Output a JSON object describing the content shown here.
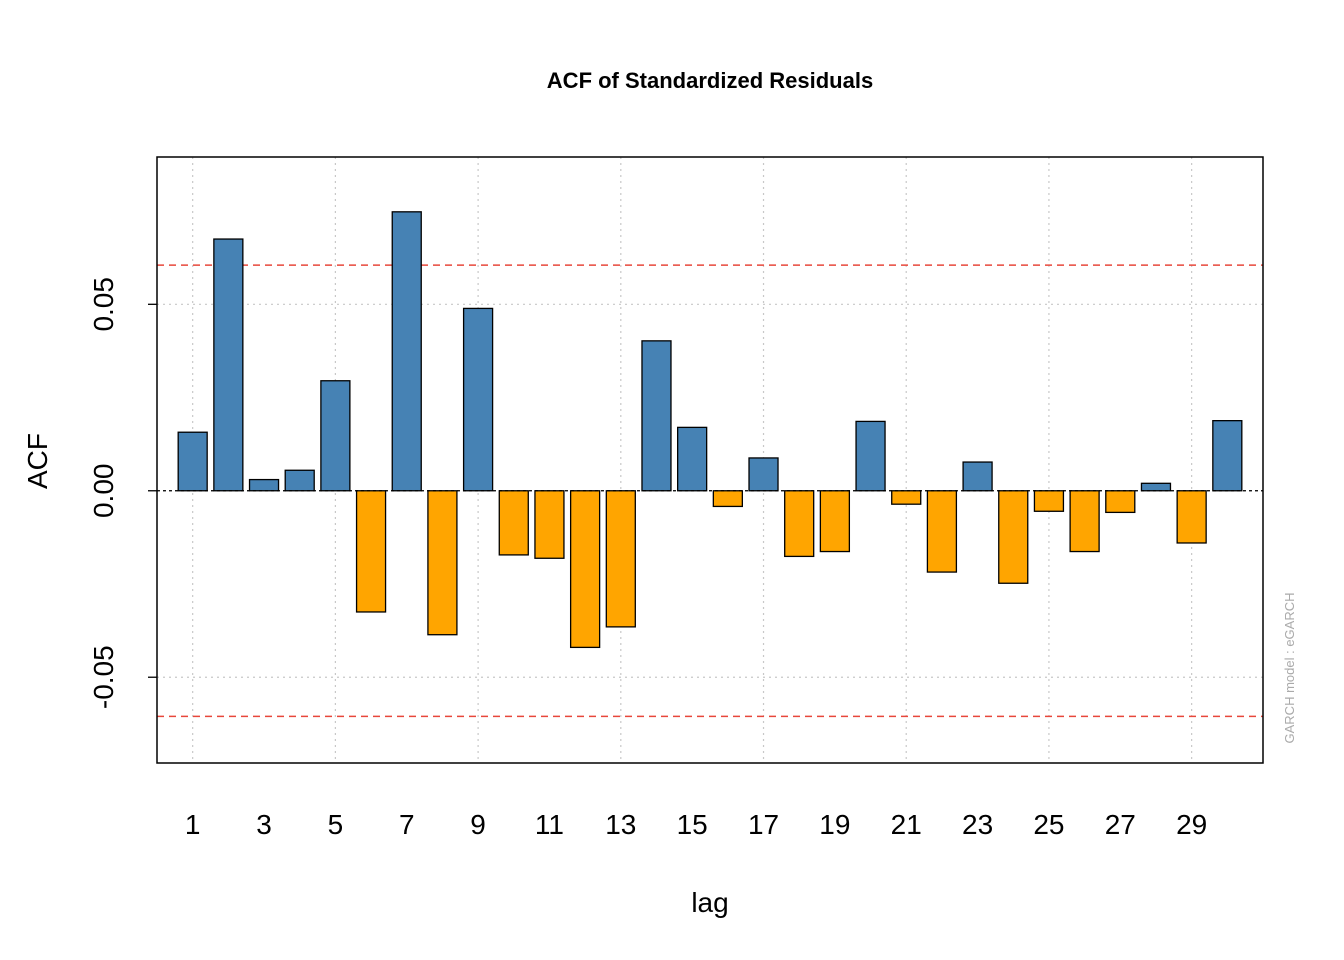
{
  "chart_data": {
    "type": "bar",
    "title": "ACF of Standardized Residuals",
    "xlabel": "lag",
    "ylabel": "ACF",
    "footnote": "GARCH model :  eGARCH",
    "x_tick_labels": [
      "1",
      "3",
      "5",
      "7",
      "9",
      "11",
      "13",
      "15",
      "17",
      "19",
      "21",
      "23",
      "25",
      "27",
      "29"
    ],
    "y_tick_labels": [
      "-0.05",
      "0.00",
      "0.05"
    ],
    "y_ticks": [
      -0.05,
      0.0,
      0.05
    ],
    "x_grid": [
      1,
      5,
      9,
      13,
      17,
      21,
      25,
      29
    ],
    "ylim": [
      -0.073,
      0.0895
    ],
    "xlim": [
      0,
      31
    ],
    "grid": true,
    "confidence_band": [
      -0.0605,
      0.0605
    ],
    "colors": {
      "positive": "#4682b4",
      "negative": "#ffa500",
      "band": "#e8473b",
      "grid": "#c8c8c8"
    },
    "lags": [
      1,
      2,
      3,
      4,
      5,
      6,
      7,
      8,
      9,
      10,
      11,
      12,
      13,
      14,
      15,
      16,
      17,
      18,
      19,
      20,
      21,
      22,
      23,
      24,
      25,
      26,
      27,
      28,
      29,
      30
    ],
    "values": [
      0.0157,
      0.0675,
      0.003,
      0.0055,
      0.0295,
      -0.0325,
      0.0748,
      -0.0386,
      0.0489,
      -0.0172,
      -0.0181,
      -0.042,
      -0.0365,
      0.0402,
      0.017,
      -0.0042,
      0.0088,
      -0.0176,
      -0.0163,
      0.0186,
      -0.0036,
      -0.0218,
      0.0077,
      -0.0248,
      -0.0055,
      -0.0163,
      -0.0058,
      0.002,
      -0.014,
      0.0188
    ]
  }
}
